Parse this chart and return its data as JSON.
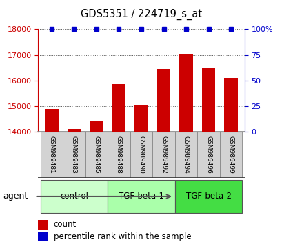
{
  "title": "GDS5351 / 224719_s_at",
  "samples": [
    "GSM989481",
    "GSM989483",
    "GSM989485",
    "GSM989488",
    "GSM989490",
    "GSM989492",
    "GSM989494",
    "GSM989496",
    "GSM989499"
  ],
  "counts": [
    14900,
    14100,
    14400,
    15850,
    15050,
    16450,
    17050,
    16500,
    16100
  ],
  "percentiles": [
    100,
    100,
    100,
    100,
    100,
    100,
    100,
    100,
    100
  ],
  "bar_color": "#cc0000",
  "dot_color": "#0000cc",
  "ylim_left": [
    14000,
    18000
  ],
  "ylim_right": [
    0,
    100
  ],
  "yticks_left": [
    14000,
    15000,
    16000,
    17000,
    18000
  ],
  "yticks_right": [
    0,
    25,
    50,
    75,
    100
  ],
  "groups": [
    {
      "label": "control",
      "start": 0,
      "end": 3,
      "color": "#ccffcc"
    },
    {
      "label": "TGF-beta-1",
      "start": 3,
      "end": 6,
      "color": "#aaffaa"
    },
    {
      "label": "TGF-beta-2",
      "start": 6,
      "end": 9,
      "color": "#44dd44"
    }
  ],
  "agent_label": "agent",
  "legend_count_label": "count",
  "legend_percentile_label": "percentile rank within the sample",
  "background_color": "#ffffff",
  "tick_label_color_left": "#cc0000",
  "tick_label_color_right": "#0000cc",
  "sample_box_color": "#d3d3d3",
  "sample_box_edge": "#888888"
}
